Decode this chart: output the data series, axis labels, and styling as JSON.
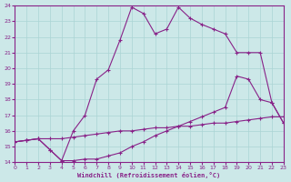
{
  "xlabel": "Windchill (Refroidissement éolien,°C)",
  "bg_color": "#cce8e8",
  "line_color": "#882288",
  "grid_color": "#aad4d4",
  "xmin": 0,
  "xmax": 23,
  "ymin": 14,
  "ymax": 24,
  "line1_x": [
    0,
    1,
    2,
    3,
    4,
    5,
    6,
    7,
    8,
    9,
    10,
    11,
    12,
    13,
    14,
    15,
    16,
    17,
    18,
    19,
    20,
    21,
    22,
    23
  ],
  "line1_y": [
    15.3,
    15.4,
    15.5,
    15.5,
    15.5,
    15.6,
    15.7,
    15.8,
    15.9,
    16.0,
    16.0,
    16.1,
    16.2,
    16.2,
    16.3,
    16.3,
    16.4,
    16.5,
    16.5,
    16.6,
    16.7,
    16.8,
    16.9,
    16.9
  ],
  "line2_x": [
    0,
    1,
    2,
    3,
    4,
    5,
    6,
    7,
    8,
    9,
    10,
    11,
    12,
    13,
    14,
    15,
    16,
    17,
    18,
    19,
    20,
    21,
    22,
    23
  ],
  "line2_y": [
    15.3,
    15.4,
    15.5,
    14.8,
    14.1,
    14.1,
    14.2,
    14.2,
    14.4,
    14.6,
    15.0,
    15.3,
    15.7,
    16.0,
    16.3,
    16.6,
    16.9,
    17.2,
    17.5,
    19.5,
    19.3,
    18.0,
    17.8,
    16.5
  ],
  "line3_x": [
    0,
    1,
    2,
    3,
    4,
    5,
    6,
    7,
    8,
    9,
    10,
    11,
    12,
    13,
    14,
    15,
    16,
    17,
    18,
    19,
    20,
    21,
    22,
    23
  ],
  "line3_y": [
    15.3,
    15.4,
    15.5,
    14.8,
    14.1,
    16.0,
    17.0,
    19.3,
    19.9,
    21.8,
    23.9,
    23.5,
    22.2,
    22.5,
    23.9,
    23.2,
    22.8,
    22.5,
    22.2,
    21.0,
    21.0,
    21.0,
    17.8,
    16.5
  ]
}
